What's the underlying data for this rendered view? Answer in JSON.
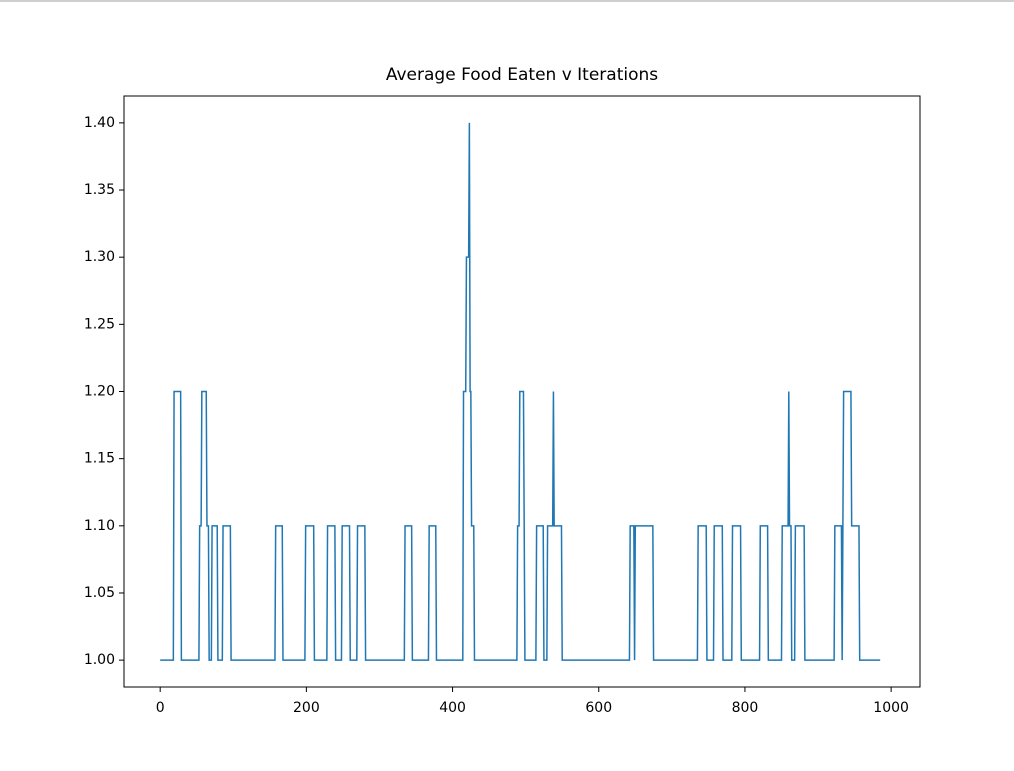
{
  "chart_data": {
    "type": "line",
    "title": "Average Food Eaten v Iterations",
    "x": [
      0,
      18,
      19,
      28,
      29,
      53,
      54,
      56,
      57,
      63,
      64,
      66,
      67,
      70,
      71,
      78,
      79,
      85,
      86,
      96,
      97,
      157,
      158,
      167,
      168,
      198,
      199,
      210,
      211,
      228,
      229,
      239,
      240,
      248,
      249,
      259,
      260,
      269,
      270,
      280,
      281,
      334,
      335,
      344,
      345,
      367,
      368,
      377,
      378,
      414,
      415,
      418,
      419,
      422,
      423,
      424,
      425,
      426,
      429,
      430,
      488,
      489,
      491,
      492,
      497,
      498,
      499,
      514,
      515,
      524,
      525,
      529,
      530,
      537,
      538,
      539,
      549,
      550,
      642,
      643,
      648,
      649,
      650,
      674,
      675,
      735,
      736,
      747,
      748,
      757,
      758,
      769,
      770,
      782,
      783,
      794,
      795,
      820,
      821,
      831,
      832,
      850,
      851,
      859,
      860,
      861,
      863,
      864,
      868,
      869,
      881,
      882,
      922,
      923,
      932,
      933,
      934,
      935,
      945,
      946,
      956,
      957,
      985
    ],
    "series": [
      {
        "color": "#1f77b4",
        "values": [
          1.0,
          1.0,
          1.2,
          1.2,
          1.0,
          1.0,
          1.1,
          1.1,
          1.2,
          1.2,
          1.1,
          1.1,
          1.0,
          1.0,
          1.1,
          1.1,
          1.0,
          1.0,
          1.1,
          1.1,
          1.0,
          1.0,
          1.1,
          1.1,
          1.0,
          1.0,
          1.1,
          1.1,
          1.0,
          1.0,
          1.1,
          1.1,
          1.0,
          1.0,
          1.1,
          1.1,
          1.0,
          1.0,
          1.1,
          1.1,
          1.0,
          1.0,
          1.1,
          1.1,
          1.0,
          1.0,
          1.1,
          1.1,
          1.0,
          1.0,
          1.2,
          1.2,
          1.3,
          1.3,
          1.4,
          1.2,
          1.2,
          1.1,
          1.1,
          1.0,
          1.0,
          1.1,
          1.1,
          1.2,
          1.2,
          1.1,
          1.0,
          1.0,
          1.1,
          1.1,
          1.0,
          1.0,
          1.1,
          1.1,
          1.2,
          1.1,
          1.1,
          1.0,
          1.0,
          1.1,
          1.1,
          1.0,
          1.1,
          1.1,
          1.0,
          1.0,
          1.1,
          1.1,
          1.0,
          1.0,
          1.1,
          1.1,
          1.0,
          1.0,
          1.1,
          1.1,
          1.0,
          1.0,
          1.1,
          1.1,
          1.0,
          1.0,
          1.1,
          1.1,
          1.2,
          1.1,
          1.1,
          1.0,
          1.0,
          1.1,
          1.1,
          1.0,
          1.0,
          1.1,
          1.1,
          1.0,
          1.1,
          1.2,
          1.2,
          1.1,
          1.1,
          1.0,
          1.0
        ]
      }
    ],
    "xlim": [
      -49.5,
      1039.5
    ],
    "xticks": [
      0,
      200,
      400,
      600,
      800,
      1000
    ],
    "ylim": [
      0.98,
      1.42
    ],
    "yticks": [
      {
        "value": 1.0,
        "label": "1.00"
      },
      {
        "value": 1.05,
        "label": "1.05"
      },
      {
        "value": 1.1,
        "label": "1.10"
      },
      {
        "value": 1.15,
        "label": "1.15"
      },
      {
        "value": 1.2,
        "label": "1.20"
      },
      {
        "value": 1.25,
        "label": "1.25"
      },
      {
        "value": 1.3,
        "label": "1.30"
      },
      {
        "value": 1.35,
        "label": "1.35"
      },
      {
        "value": 1.4,
        "label": "1.40"
      }
    ]
  }
}
